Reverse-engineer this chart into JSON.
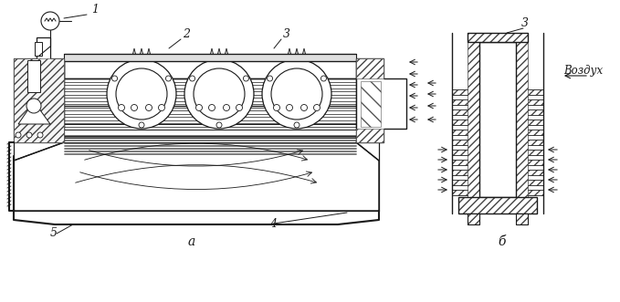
{
  "bg_color": "#ffffff",
  "line_color": "#1a1a1a",
  "label_1": "1",
  "label_2": "2",
  "label_3": "3",
  "label_4": "4",
  "label_5": "5",
  "label_a": "а",
  "label_b": "б",
  "label_vozduh": "Воздух",
  "fig_width": 6.79,
  "fig_height": 3.31,
  "dpi": 100
}
